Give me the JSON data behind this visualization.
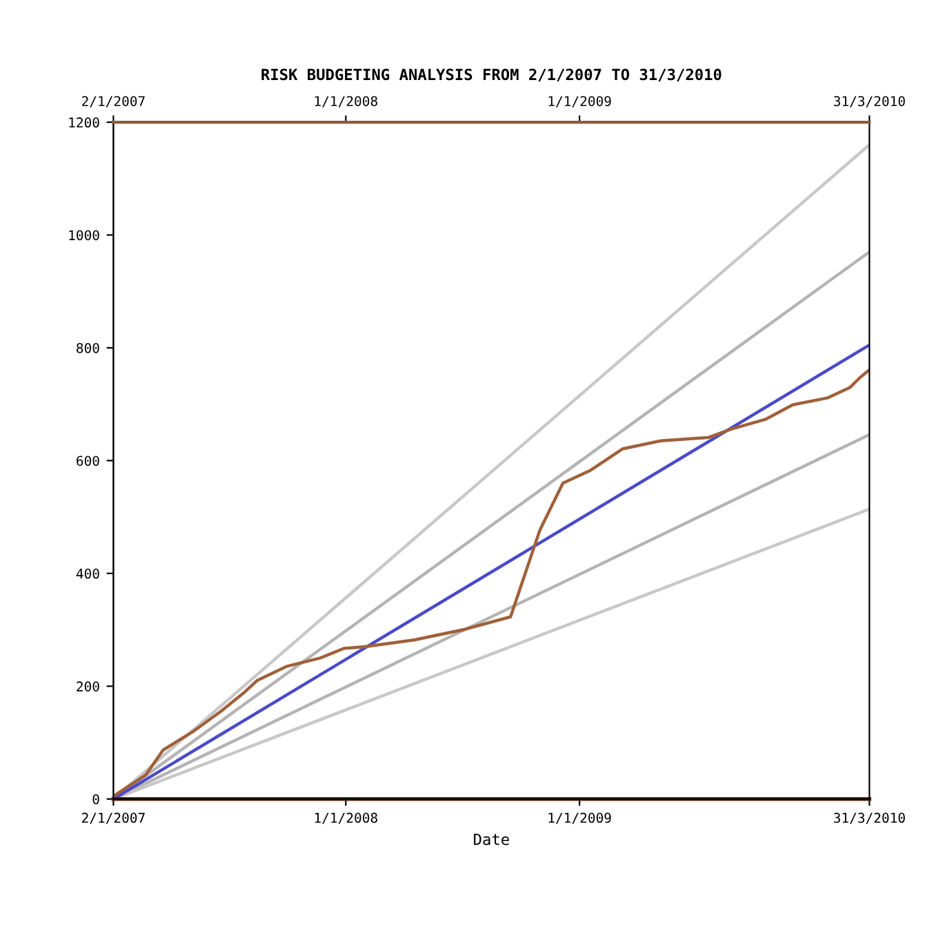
{
  "chart_data": {
    "type": "line",
    "title": "RISK BUDGETING ANALYSIS FROM 2/1/2007 TO 31/3/2010",
    "xlabel": "Date",
    "xlim": [
      "2007-01-02",
      "2010-03-31"
    ],
    "xticks": [
      {
        "value": "2007-01-02",
        "label": "2/1/2007"
      },
      {
        "value": "2008-01-01",
        "label": "1/1/2008"
      },
      {
        "value": "2009-01-01",
        "label": "1/1/2009"
      },
      {
        "value": "2010-03-31",
        "label": "31/3/2010"
      }
    ],
    "x2lim": [
      "2007-01-02",
      "2010-03-31"
    ],
    "x2ticks": [
      {
        "value": "2007-01-02",
        "label": "2/1/2007"
      },
      {
        "value": "2008-01-01",
        "label": "1/1/2008"
      },
      {
        "value": "2009-01-01",
        "label": "1/1/2009"
      },
      {
        "value": "2010-03-31",
        "label": "31/3/2010"
      }
    ],
    "ylim": [
      0,
      1200
    ],
    "yticks": [
      0,
      200,
      400,
      600,
      800,
      1000,
      1200
    ],
    "grid": false,
    "marker": "none",
    "series": [
      {
        "color": "#c8c8c8",
        "x": [
          "2007-01-02",
          "2010-03-31"
        ],
        "values": [
          0,
          1160
        ]
      },
      {
        "color": "#b4b4b4",
        "x": [
          "2007-01-02",
          "2010-03-31"
        ],
        "values": [
          0,
          970
        ]
      },
      {
        "color": "#b4b4b4",
        "x": [
          "2007-01-02",
          "2010-03-31"
        ],
        "values": [
          0,
          646
        ]
      },
      {
        "color": "#c8c8c8",
        "x": [
          "2007-01-02",
          "2010-03-31"
        ],
        "values": [
          0,
          514
        ]
      },
      {
        "color": "#4a4ac8",
        "x": [
          "2007-01-02",
          "2010-03-31"
        ],
        "values": [
          0,
          805
        ]
      },
      {
        "color": "#a0603a",
        "x": [
          "2007-01-02",
          "2007-02-22",
          "2007-03-21",
          "2007-05-06",
          "2007-06-20",
          "2007-07-27",
          "2007-08-15",
          "2007-09-30",
          "2007-11-22",
          "2007-12-29",
          "2008-01-31",
          "2008-04-17",
          "2008-07-06",
          "2008-09-15",
          "2008-10-08",
          "2008-10-31",
          "2008-12-06",
          "2009-01-17",
          "2009-03-10",
          "2009-05-08",
          "2009-07-22",
          "2009-08-27",
          "2009-10-19",
          "2009-12-01",
          "2010-01-24",
          "2010-03-01",
          "2010-03-16",
          "2010-03-31"
        ],
        "values": [
          5,
          43,
          87,
          119,
          156,
          190,
          210,
          235,
          250,
          267,
          270,
          282,
          301,
          323,
          400,
          477,
          560,
          582,
          621,
          635,
          641,
          656,
          673,
          699,
          711,
          730,
          747,
          761
        ]
      }
    ]
  }
}
